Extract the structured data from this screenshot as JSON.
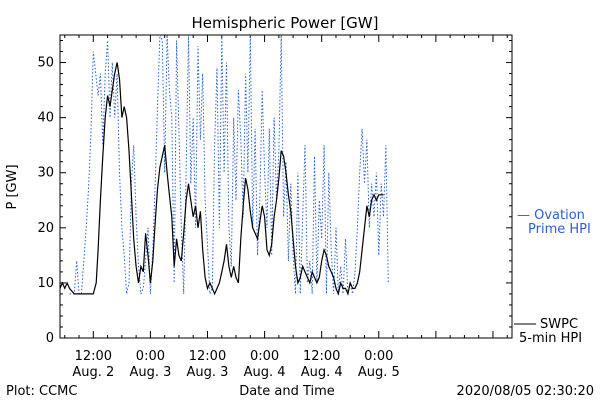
{
  "chart_data": {
    "type": "line",
    "title": "Hemispheric Power [GW]",
    "ylabel": "P [GW]",
    "xlabel": "Date and Time",
    "x_unit": "hours from Aug. 2 00:00",
    "xlim": [
      5,
      100
    ],
    "ylim": [
      0,
      55
    ],
    "yticks": [
      0,
      10,
      20,
      30,
      40,
      50
    ],
    "xticks": [
      {
        "x": 12,
        "time": "12:00",
        "date": "Aug. 2"
      },
      {
        "x": 24,
        "time": "0:00",
        "date": "Aug. 3"
      },
      {
        "x": 36,
        "time": "12:00",
        "date": "Aug. 3"
      },
      {
        "x": 48,
        "time": "0:00",
        "date": "Aug. 4"
      },
      {
        "x": 60,
        "time": "12:00",
        "date": "Aug. 4"
      },
      {
        "x": 72,
        "time": "0:00",
        "date": "Aug. 5"
      }
    ],
    "series": [
      {
        "name": "SWPC 5-min HPI",
        "legend_line1": "SWPC",
        "legend_line2": "5-min HPI",
        "color": "#000000",
        "style": "solid",
        "points": [
          [
            5,
            9
          ],
          [
            5.5,
            10
          ],
          [
            6,
            9
          ],
          [
            6.5,
            10
          ],
          [
            7,
            9
          ],
          [
            8,
            8
          ],
          [
            9,
            8
          ],
          [
            10,
            8
          ],
          [
            11,
            8
          ],
          [
            12,
            8
          ],
          [
            12.6,
            10
          ],
          [
            13,
            16
          ],
          [
            13.5,
            25
          ],
          [
            14,
            33
          ],
          [
            14.5,
            40
          ],
          [
            15,
            44
          ],
          [
            15.5,
            42
          ],
          [
            16,
            45
          ],
          [
            16.5,
            48
          ],
          [
            17,
            50
          ],
          [
            17.5,
            47
          ],
          [
            18,
            40
          ],
          [
            18.5,
            42
          ],
          [
            19,
            40
          ],
          [
            19.5,
            34
          ],
          [
            20,
            26
          ],
          [
            20.5,
            18
          ],
          [
            21,
            13
          ],
          [
            21.5,
            10
          ],
          [
            22,
            13
          ],
          [
            22.5,
            12
          ],
          [
            23,
            19
          ],
          [
            23.5,
            15
          ],
          [
            24,
            10
          ],
          [
            24.5,
            14
          ],
          [
            25,
            21
          ],
          [
            25.5,
            27
          ],
          [
            26,
            31
          ],
          [
            26.5,
            33
          ],
          [
            27,
            35
          ],
          [
            27.5,
            30
          ],
          [
            28,
            26
          ],
          [
            28.5,
            22
          ],
          [
            29,
            13
          ],
          [
            29.5,
            18
          ],
          [
            30,
            15
          ],
          [
            30.5,
            14
          ],
          [
            31,
            19
          ],
          [
            31.5,
            25
          ],
          [
            32,
            28
          ],
          [
            32.5,
            25
          ],
          [
            33,
            22
          ],
          [
            33.5,
            24
          ],
          [
            34,
            20
          ],
          [
            34.5,
            23
          ],
          [
            35,
            16
          ],
          [
            35.5,
            11
          ],
          [
            36,
            9
          ],
          [
            36.5,
            10
          ],
          [
            37,
            9
          ],
          [
            37.5,
            8
          ],
          [
            38,
            9
          ],
          [
            38.5,
            10
          ],
          [
            39,
            12
          ],
          [
            39.5,
            14
          ],
          [
            40,
            17
          ],
          [
            40.5,
            13
          ],
          [
            41,
            11
          ],
          [
            41.5,
            13
          ],
          [
            42,
            11
          ],
          [
            42.5,
            10
          ],
          [
            43,
            18
          ],
          [
            43.5,
            24
          ],
          [
            44,
            29
          ],
          [
            44.5,
            27
          ],
          [
            45,
            23
          ],
          [
            45.5,
            20
          ],
          [
            46,
            19
          ],
          [
            46.5,
            18
          ],
          [
            47,
            21
          ],
          [
            47.5,
            24
          ],
          [
            48,
            22
          ],
          [
            48.5,
            16
          ],
          [
            49,
            15
          ],
          [
            49.5,
            17
          ],
          [
            50,
            22
          ],
          [
            50.5,
            25
          ],
          [
            51,
            29
          ],
          [
            51.5,
            34
          ],
          [
            52,
            33
          ],
          [
            52.5,
            30
          ],
          [
            53,
            26
          ],
          [
            53.5,
            23
          ],
          [
            54,
            18
          ],
          [
            54.5,
            13
          ],
          [
            55,
            10
          ],
          [
            55.5,
            11
          ],
          [
            56,
            13
          ],
          [
            56.5,
            12
          ],
          [
            57,
            11
          ],
          [
            57.5,
            10
          ],
          [
            58,
            12
          ],
          [
            58.5,
            11
          ],
          [
            59,
            10
          ],
          [
            59.5,
            11
          ],
          [
            60,
            14
          ],
          [
            60.5,
            16
          ],
          [
            61,
            15
          ],
          [
            61.5,
            13
          ],
          [
            62,
            12
          ],
          [
            62.5,
            11
          ],
          [
            63,
            9
          ],
          [
            63.5,
            8
          ],
          [
            64,
            10
          ],
          [
            64.5,
            9
          ],
          [
            65,
            9
          ],
          [
            65.5,
            8
          ],
          [
            66,
            10
          ],
          [
            66.5,
            9
          ],
          [
            67,
            9
          ],
          [
            67.5,
            10
          ],
          [
            68,
            12
          ],
          [
            68.5,
            16
          ],
          [
            69,
            20
          ],
          [
            69.5,
            24
          ],
          [
            70,
            22
          ],
          [
            70.5,
            25
          ],
          [
            71,
            26
          ],
          [
            71.5,
            25
          ],
          [
            72,
            26
          ],
          [
            72.5,
            26
          ],
          [
            73,
            26
          ]
        ]
      },
      {
        "name": "Ovation Prime HPI",
        "legend_line1": "— Ovation",
        "legend_line2": "Prime HPI",
        "color": "#2a5fd6",
        "style": "dotted",
        "points": [
          [
            7,
            8
          ],
          [
            8,
            8
          ],
          [
            8.5,
            14
          ],
          [
            9,
            8
          ],
          [
            9.5,
            8
          ],
          [
            10,
            14
          ],
          [
            10.5,
            20
          ],
          [
            11,
            27
          ],
          [
            11.5,
            37
          ],
          [
            12,
            52
          ],
          [
            12.5,
            48
          ],
          [
            13,
            44
          ],
          [
            13.5,
            48
          ],
          [
            14,
            35
          ],
          [
            14.5,
            48
          ],
          [
            15,
            54
          ],
          [
            15.5,
            40
          ],
          [
            16,
            50
          ],
          [
            16.5,
            40
          ],
          [
            17,
            48
          ],
          [
            17.5,
            30
          ],
          [
            18,
            20
          ],
          [
            18.5,
            15
          ],
          [
            19,
            8
          ],
          [
            19.5,
            10
          ],
          [
            20,
            28
          ],
          [
            20.5,
            35
          ],
          [
            21,
            22
          ],
          [
            21.5,
            13
          ],
          [
            22,
            8
          ],
          [
            22.5,
            9
          ],
          [
            23,
            14
          ],
          [
            23.5,
            20
          ],
          [
            24,
            8
          ],
          [
            24.5,
            16
          ],
          [
            25,
            28
          ],
          [
            25.5,
            42
          ],
          [
            26,
            55
          ],
          [
            26.5,
            54
          ],
          [
            27,
            30
          ],
          [
            27.5,
            55
          ],
          [
            28,
            45
          ],
          [
            28.5,
            40
          ],
          [
            29,
            10
          ],
          [
            29.5,
            54
          ],
          [
            30,
            38
          ],
          [
            30.5,
            20
          ],
          [
            31,
            8
          ],
          [
            31.5,
            30
          ],
          [
            32,
            55
          ],
          [
            32.5,
            28
          ],
          [
            33,
            40
          ],
          [
            33.5,
            20
          ],
          [
            34,
            53
          ],
          [
            34.5,
            36
          ],
          [
            35,
            48
          ],
          [
            35.5,
            25
          ],
          [
            36,
            17
          ],
          [
            36.5,
            8
          ],
          [
            37,
            9
          ],
          [
            37.5,
            35
          ],
          [
            38,
            49
          ],
          [
            38.5,
            20
          ],
          [
            39,
            55
          ],
          [
            39.5,
            30
          ],
          [
            40,
            50
          ],
          [
            40.5,
            20
          ],
          [
            41,
            13
          ],
          [
            41.5,
            40
          ],
          [
            42,
            25
          ],
          [
            42.5,
            45
          ],
          [
            43,
            36
          ],
          [
            43.5,
            22
          ],
          [
            44,
            48
          ],
          [
            44.5,
            30
          ],
          [
            45,
            55
          ],
          [
            45.5,
            20
          ],
          [
            46,
            38
          ],
          [
            46.5,
            15
          ],
          [
            47,
            25
          ],
          [
            47.5,
            45
          ],
          [
            48,
            30
          ],
          [
            48.5,
            20
          ],
          [
            49,
            38
          ],
          [
            49.5,
            15
          ],
          [
            50,
            40
          ],
          [
            50.5,
            25
          ],
          [
            51,
            34
          ],
          [
            51.5,
            55
          ],
          [
            52,
            22
          ],
          [
            52.5,
            32
          ],
          [
            53,
            14
          ],
          [
            53.5,
            28
          ],
          [
            54,
            15
          ],
          [
            54.5,
            8
          ],
          [
            55,
            30
          ],
          [
            55.5,
            8
          ],
          [
            56,
            22
          ],
          [
            56.5,
            35
          ],
          [
            57,
            10
          ],
          [
            57.5,
            14
          ],
          [
            58,
            8
          ],
          [
            58.5,
            33
          ],
          [
            59,
            10
          ],
          [
            59.5,
            25
          ],
          [
            60,
            18
          ],
          [
            60.5,
            35
          ],
          [
            61,
            8
          ],
          [
            61.5,
            30
          ],
          [
            62,
            16
          ],
          [
            62.5,
            8
          ],
          [
            63,
            20
          ],
          [
            63.5,
            8
          ],
          [
            64,
            13
          ],
          [
            64.5,
            8
          ],
          [
            65,
            18
          ],
          [
            65.5,
            8
          ],
          [
            66,
            10
          ],
          [
            66.5,
            8
          ],
          [
            67,
            12
          ],
          [
            67.5,
            20
          ],
          [
            68,
            30
          ],
          [
            68.5,
            38
          ],
          [
            69,
            28
          ],
          [
            69.5,
            36
          ],
          [
            70,
            20
          ],
          [
            70.5,
            28
          ],
          [
            71,
            22
          ],
          [
            71.5,
            30
          ],
          [
            72,
            15
          ],
          [
            72.5,
            28
          ],
          [
            73,
            22
          ],
          [
            73.5,
            35
          ],
          [
            74,
            10
          ]
        ]
      }
    ],
    "grid": false,
    "footer_left": "Plot: CCMC",
    "footer_right": "2020/08/05 02:30:20"
  }
}
